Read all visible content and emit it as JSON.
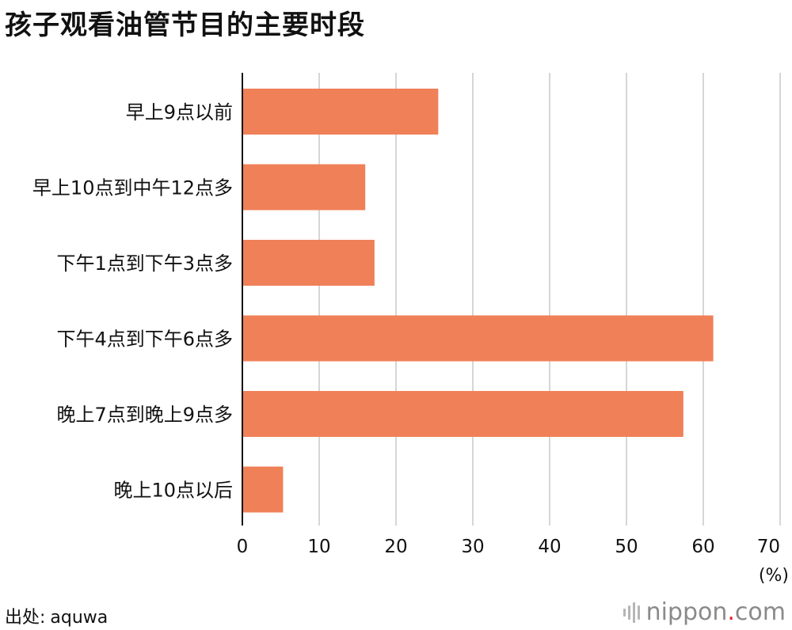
{
  "title": "孩子观看油管节目的主要时段",
  "source": {
    "label": "出处:",
    "value": "aquwa"
  },
  "brand": {
    "name": "nippon",
    "dot": ".",
    "tld": "com"
  },
  "colors": {
    "bar": "#f08058",
    "grid": "#d6d6d6",
    "axis": "#111111",
    "brand_dot": "#e0232e"
  },
  "chart_data": {
    "type": "bar",
    "orientation": "horizontal",
    "title": "孩子观看油管节目的主要时段",
    "categories": [
      "早上9点以前",
      "早上10点到中午12点多",
      "下午1点到下午3点多",
      "下午4点到下午6点多",
      "晚上7点到晚上9点多",
      "晚上10点以后"
    ],
    "values": [
      25.5,
      16.0,
      17.2,
      61.3,
      57.4,
      5.3
    ],
    "xlim": [
      0,
      70
    ],
    "ticks": [
      0,
      10,
      20,
      30,
      40,
      50,
      60,
      70
    ],
    "unit": "(%)",
    "grid": true,
    "legend": "none"
  }
}
